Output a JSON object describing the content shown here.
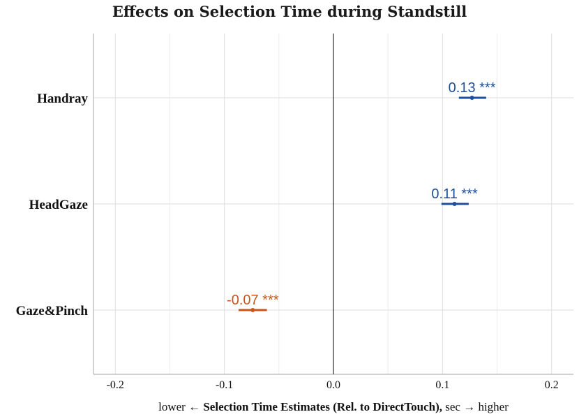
{
  "chart_data": {
    "type": "forest",
    "title": "Effects on Selection Time during Standstill",
    "xlabel": {
      "prefix": "lower ← ",
      "bold": "Selection Time Estimates (Rel. to DirectTouch),",
      "suffix": " sec → higher"
    },
    "ylabel": "",
    "xlim": [
      -0.22,
      0.22
    ],
    "xticks": [
      -0.2,
      -0.1,
      0.0,
      0.1,
      0.2
    ],
    "xtick_labels": [
      "-0.2",
      "-0.1",
      "0.0",
      "0.1",
      "0.2"
    ],
    "reference_line": 0,
    "categories": [
      "Handray",
      "HeadGaze",
      "Gaze&Pinch"
    ],
    "points": [
      {
        "name": "Handray",
        "estimate": 0.127,
        "ci": [
          0.115,
          0.14
        ],
        "label": "0.13 ***",
        "color": "#1f4e9c"
      },
      {
        "name": "HeadGaze",
        "estimate": 0.111,
        "ci": [
          0.099,
          0.124
        ],
        "label": "0.11 ***",
        "color": "#1f4e9c"
      },
      {
        "name": "Gaze&Pinch",
        "estimate": -0.074,
        "ci": [
          -0.087,
          -0.061
        ],
        "label": "-0.07 ***",
        "color": "#c8561a"
      }
    ],
    "grid": true
  }
}
